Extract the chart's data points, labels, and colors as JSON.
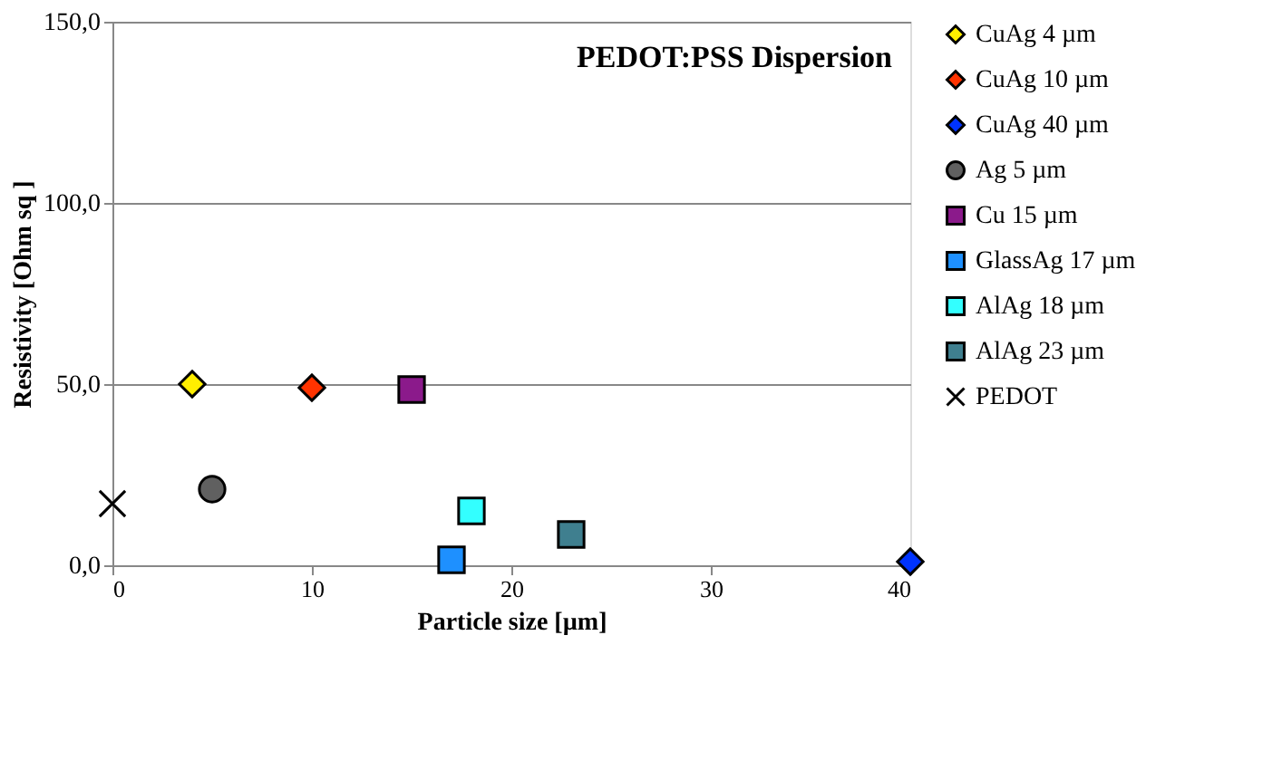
{
  "chart_data": {
    "type": "scatter",
    "title": "PEDOT:PSS Dispersion",
    "xlabel": "Particle size [µm]",
    "ylabel": "Resistivity [Ohm sq ]",
    "xlim": [
      0,
      40
    ],
    "xticks": [
      0,
      10,
      20,
      30,
      40
    ],
    "ylim": [
      0,
      150
    ],
    "yticks": [
      {
        "value": 0,
        "label": "0,0"
      },
      {
        "value": 50,
        "label": "50,0"
      },
      {
        "value": 100,
        "label": "100,0"
      },
      {
        "value": 150,
        "label": "150,0"
      }
    ],
    "grid": "y",
    "legend": "right",
    "series": [
      {
        "name": "CuAg 4 µm",
        "color": "#ffee00",
        "marker": "diamond",
        "x": [
          4
        ],
        "values": [
          50
        ]
      },
      {
        "name": "CuAg 10 µm",
        "color": "#ff3300",
        "marker": "diamond",
        "x": [
          10
        ],
        "values": [
          49
        ]
      },
      {
        "name": "CuAg 40 µm",
        "color": "#0033ff",
        "marker": "diamond",
        "x": [
          40
        ],
        "values": [
          1
        ]
      },
      {
        "name": "Ag 5 µm",
        "color": "#606060",
        "marker": "circle",
        "x": [
          5
        ],
        "values": [
          21
        ]
      },
      {
        "name": "Cu 15 µm",
        "color": "#8b1a8b",
        "marker": "square",
        "x": [
          15
        ],
        "values": [
          48.5
        ]
      },
      {
        "name": "GlassAg 17 µm",
        "color": "#1e90ff",
        "marker": "square",
        "x": [
          17
        ],
        "values": [
          1.5
        ]
      },
      {
        "name": "AlAg 18 µm",
        "color": "#33ffff",
        "marker": "square",
        "x": [
          18
        ],
        "values": [
          15
        ]
      },
      {
        "name": "AlAg 23 µm",
        "color": "#3f7f8f",
        "marker": "square",
        "x": [
          23
        ],
        "values": [
          8.5
        ]
      },
      {
        "name": "PEDOT",
        "color": "#000000",
        "marker": "cross",
        "x": [
          0
        ],
        "values": [
          17
        ]
      }
    ]
  }
}
